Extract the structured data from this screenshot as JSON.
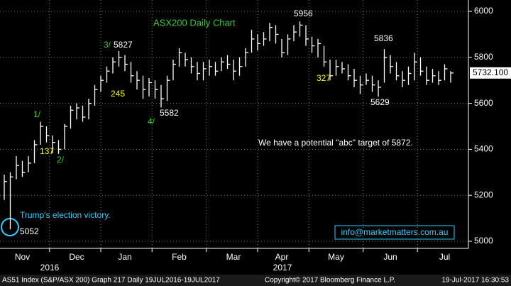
{
  "chart_data": {
    "type": "hlc",
    "title": "ASX200 Daily Chart",
    "categories": [
      null,
      null,
      null,
      "Nov",
      null,
      null,
      null,
      null,
      null,
      null,
      null,
      null,
      "Dec",
      null,
      null,
      null,
      null,
      null,
      null,
      null,
      "Jan",
      null,
      null,
      null,
      null,
      null,
      null,
      null,
      null,
      "Feb",
      null,
      null,
      null,
      null,
      null,
      null,
      null,
      null,
      "Mar",
      null,
      null,
      null,
      null,
      null,
      null,
      null,
      "Apr",
      null,
      null,
      null,
      null,
      null,
      null,
      null,
      null,
      "May",
      null,
      null,
      null,
      null,
      null,
      null,
      null,
      null,
      "Jun",
      null,
      null,
      null,
      null,
      null,
      null,
      null,
      null,
      "Jul",
      null
    ],
    "years": [
      "2016",
      "2017"
    ],
    "high": [
      5290,
      5300,
      5370,
      5350,
      5370,
      5440,
      5520,
      5500,
      5460,
      5440,
      5510,
      5590,
      5600,
      5590,
      5620,
      5680,
      5720,
      5760,
      5800,
      5827,
      5810,
      5780,
      5740,
      5720,
      5710,
      5700,
      5680,
      5720,
      5790,
      5840,
      5820,
      5800,
      5780,
      5780,
      5790,
      5780,
      5800,
      5810,
      5790,
      5800,
      5840,
      5920,
      5900,
      5910,
      5950,
      5940,
      5880,
      5900,
      5940,
      5956,
      5940,
      5890,
      5880,
      5850,
      5790,
      5790,
      5780,
      5770,
      5750,
      5720,
      5730,
      5720,
      5700,
      5836,
      5810,
      5780,
      5740,
      5760,
      5820,
      5800,
      5760,
      5750,
      5740,
      5770,
      5740
    ],
    "low": [
      5180,
      5052,
      5270,
      5280,
      5300,
      5340,
      5420,
      5430,
      5383,
      5380,
      5400,
      5490,
      5530,
      5520,
      5530,
      5590,
      5650,
      5690,
      5730,
      5760,
      5740,
      5690,
      5660,
      5620,
      5630,
      5620,
      5582,
      5610,
      5700,
      5760,
      5760,
      5730,
      5700,
      5700,
      5720,
      5720,
      5740,
      5750,
      5700,
      5720,
      5760,
      5820,
      5830,
      5850,
      5870,
      5860,
      5800,
      5810,
      5870,
      5890,
      5850,
      5820,
      5800,
      5760,
      5700,
      5720,
      5730,
      5700,
      5670,
      5640,
      5680,
      5650,
      5629,
      5690,
      5730,
      5700,
      5670,
      5680,
      5700,
      5720,
      5680,
      5690,
      5680,
      5700,
      5690
    ],
    "close": [
      5260,
      5280,
      5330,
      5300,
      5340,
      5420,
      5500,
      5460,
      5430,
      5400,
      5500,
      5570,
      5580,
      5540,
      5600,
      5660,
      5700,
      5740,
      5780,
      5800,
      5770,
      5720,
      5700,
      5660,
      5690,
      5660,
      5620,
      5700,
      5770,
      5820,
      5790,
      5760,
      5730,
      5750,
      5760,
      5740,
      5780,
      5770,
      5740,
      5760,
      5820,
      5880,
      5860,
      5880,
      5930,
      5900,
      5820,
      5880,
      5910,
      5940,
      5880,
      5850,
      5860,
      5780,
      5720,
      5760,
      5750,
      5720,
      5700,
      5680,
      5700,
      5680,
      5670,
      5800,
      5760,
      5720,
      5700,
      5730,
      5780,
      5740,
      5700,
      5720,
      5700,
      5750,
      5732.1
    ],
    "last_price_label": "5732.100",
    "color": "#ffffff",
    "ylim": [
      5000,
      6000
    ],
    "yticks": [
      5000,
      5200,
      5400,
      5600,
      5800,
      6000
    ],
    "grid": true,
    "annotations": [
      {
        "text": "3/",
        "color": "#33cc33"
      },
      {
        "text": "5827",
        "color": "#ffffff"
      },
      {
        "text": "1/",
        "color": "#33cc33"
      },
      {
        "text": "137",
        "color": "#ffff00"
      },
      {
        "text": "2/",
        "color": "#33cc33"
      },
      {
        "text": "245",
        "color": "#ffff00"
      },
      {
        "text": "4/",
        "color": "#33cc33"
      },
      {
        "text": "5582",
        "color": "#ffffff"
      },
      {
        "text": "5956",
        "color": "#ffffff"
      },
      {
        "text": "327",
        "color": "#ffff00"
      },
      {
        "text": "5836",
        "color": "#ffffff"
      },
      {
        "text": "5629",
        "color": "#ffffff"
      },
      {
        "text": "We have a potential \"abc\" target of 5872.",
        "color": "#ffffff"
      },
      {
        "text": "Trump's election victory.",
        "color": "#33ccff"
      },
      {
        "text": "5052",
        "color": "#ffffff"
      }
    ],
    "email": "info@marketmatters.com.au",
    "footer": [
      "AS51 Index (S&P/ASX 200) Graph 217  Daily 19JUL2016-19JUL2017",
      "Copyright© 2017 Bloomberg Finance L.P.",
      "19-Jul-2017 16:30:53"
    ]
  }
}
